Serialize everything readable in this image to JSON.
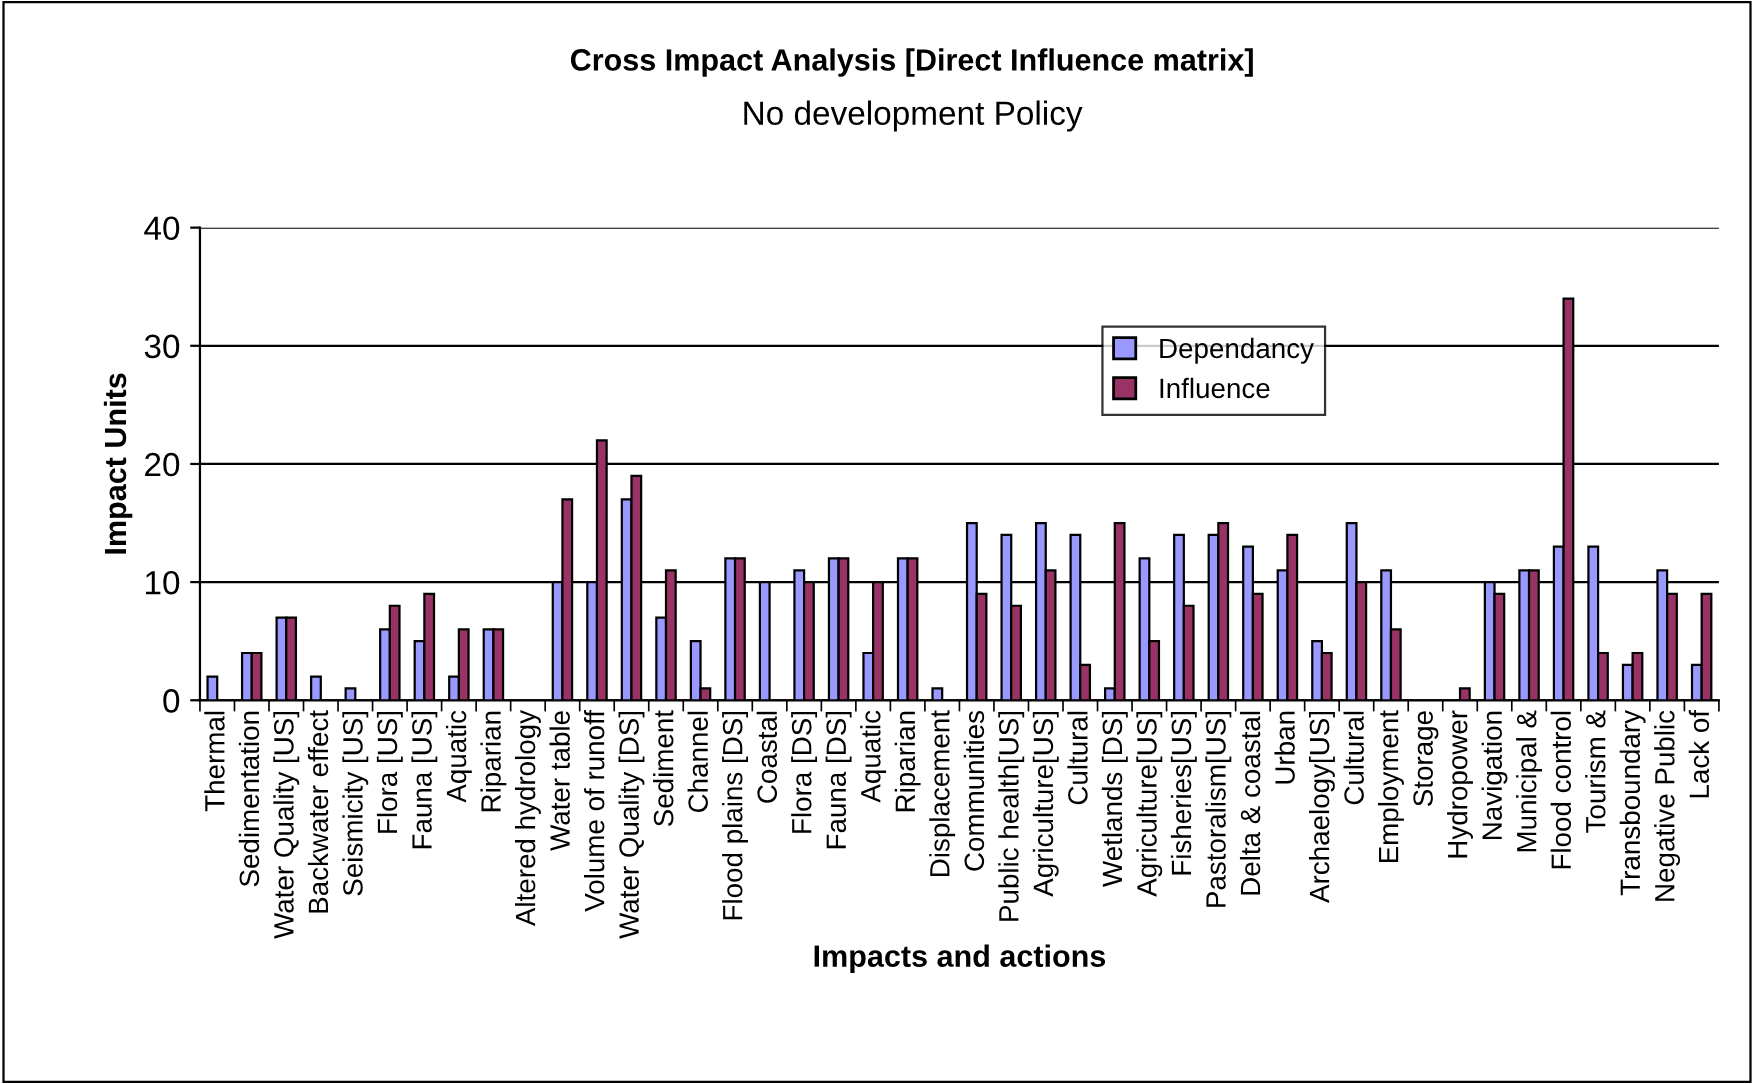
{
  "chart_data": {
    "type": "bar",
    "title": "Cross Impact Analysis [Direct Influence matrix]",
    "subtitle": "No development Policy",
    "xlabel": "Impacts and actions",
    "ylabel": "Impact Units",
    "categories": [
      "Thermal",
      "Sedimentation",
      "Water Quality [US]",
      "Backwater effect",
      "Seismicity [US]",
      "Flora [US]",
      "Fauna [US]",
      "Aquatic",
      "Riparian",
      "Altered hydrology",
      "Water table",
      "Volume of runoff",
      "Water Quality [DS]",
      "Sediment",
      "Channel",
      "Flood plains [DS]",
      "Coastal",
      "Flora [DS]",
      "Fauna [DS]",
      "Aquatic",
      "Riparian",
      "Displacement",
      "Communities",
      "Public health[US]",
      "Agriculture[US]",
      "Cultural",
      "Wetlands [DS]",
      "Agriculture[US]",
      "Fisheries[US]",
      "Pastoralism[US]",
      "Delta & coastal",
      "Urban",
      "Archaelogy[US]",
      "Cultural",
      "Employment",
      "Storage",
      "Hydropower",
      "Navigation",
      "Municipal &",
      "Flood control",
      "Tourism &",
      "Transboundary",
      "Negative Public",
      "Lack of"
    ],
    "series": [
      {
        "name": "Dependancy",
        "color": "#9999ff",
        "values": [
          2,
          4,
          7,
          2,
          1,
          6,
          5,
          2,
          6,
          0,
          10,
          10,
          17,
          7,
          5,
          12,
          10,
          11,
          12,
          4,
          12,
          1,
          15,
          14,
          15,
          14,
          1,
          12,
          14,
          14,
          13,
          11,
          5,
          15,
          11,
          0,
          0,
          10,
          11,
          13,
          13,
          3,
          11,
          3
        ]
      },
      {
        "name": "Influence",
        "color": "#993366",
        "values": [
          0,
          4,
          7,
          0,
          0,
          8,
          9,
          6,
          6,
          0,
          17,
          22,
          19,
          11,
          1,
          12,
          0,
          10,
          12,
          10,
          12,
          0,
          9,
          8,
          11,
          3,
          15,
          5,
          8,
          15,
          9,
          14,
          4,
          10,
          6,
          0,
          1,
          9,
          11,
          34,
          4,
          4,
          9,
          9
        ]
      }
    ],
    "ylim": [
      0,
      40
    ],
    "yticks": [
      0,
      10,
      20,
      30,
      40
    ],
    "grid": "y",
    "legend": "top right"
  }
}
